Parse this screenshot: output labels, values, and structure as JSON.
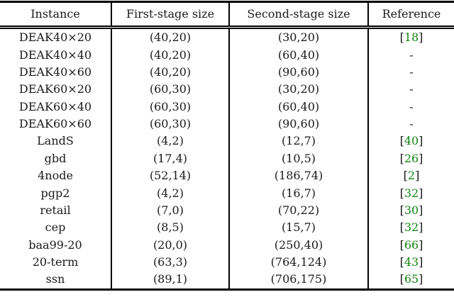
{
  "colors": {
    "citation_green": "#128412",
    "text_black": "#1a1a1a",
    "rule_black": "#000000"
  },
  "table": {
    "columns": [
      {
        "label": "Instance"
      },
      {
        "label": "First-stage size"
      },
      {
        "label": "Second-stage size"
      },
      {
        "label": "Reference"
      }
    ],
    "no_reference_symbol": "-",
    "bracket_open": "[",
    "bracket_close": "]",
    "rows": [
      {
        "instance": "DEAK40×20",
        "first_stage": "(40,20)",
        "second_stage": "(30,20)",
        "reference": "18"
      },
      {
        "instance": "DEAK40×40",
        "first_stage": "(40,20)",
        "second_stage": "(60,40)",
        "reference": "-"
      },
      {
        "instance": "DEAK40×60",
        "first_stage": "(40,20)",
        "second_stage": "(90,60)",
        "reference": "-"
      },
      {
        "instance": "DEAK60×20",
        "first_stage": "(60,30)",
        "second_stage": "(30,20)",
        "reference": "-"
      },
      {
        "instance": "DEAK60×40",
        "first_stage": "(60,30)",
        "second_stage": "(60,40)",
        "reference": "-"
      },
      {
        "instance": "DEAK60×60",
        "first_stage": "(60,30)",
        "second_stage": "(90,60)",
        "reference": "-"
      },
      {
        "instance": "LandS",
        "first_stage": "(4,2)",
        "second_stage": "(12,7)",
        "reference": "40"
      },
      {
        "instance": "gbd",
        "first_stage": "(17,4)",
        "second_stage": "(10,5)",
        "reference": "26"
      },
      {
        "instance": "4node",
        "first_stage": "(52,14)",
        "second_stage": "(186,74)",
        "reference": "2"
      },
      {
        "instance": "pgp2",
        "first_stage": "(4,2)",
        "second_stage": "(16,7)",
        "reference": "32"
      },
      {
        "instance": "retail",
        "first_stage": "(7,0)",
        "second_stage": "(70,22)",
        "reference": "30"
      },
      {
        "instance": "cep",
        "first_stage": "(8,5)",
        "second_stage": "(15,7)",
        "reference": "32"
      },
      {
        "instance": "baa99-20",
        "first_stage": "(20,0)",
        "second_stage": "(250,40)",
        "reference": "66"
      },
      {
        "instance": "20-term",
        "first_stage": "(63,3)",
        "second_stage": "(764,124)",
        "reference": "43"
      },
      {
        "instance": "ssn",
        "first_stage": "(89,1)",
        "second_stage": "(706,175)",
        "reference": "65"
      }
    ]
  }
}
